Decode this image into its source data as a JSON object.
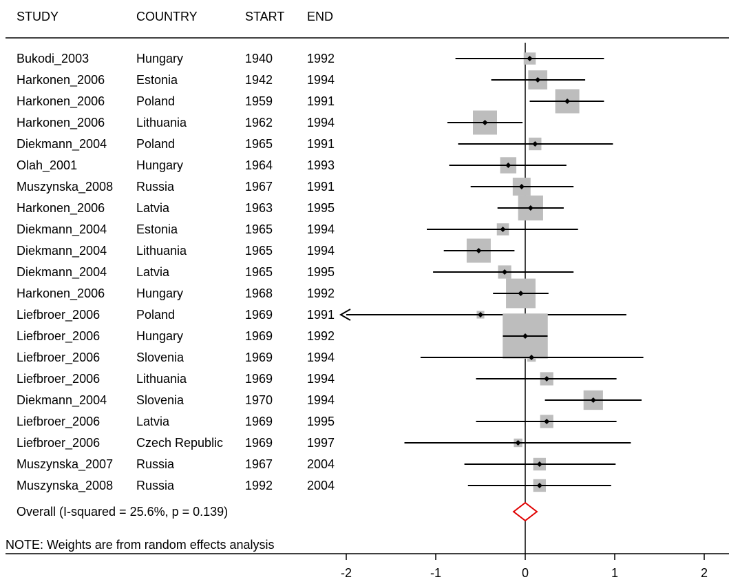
{
  "chart_data": {
    "type": "forest",
    "columns": [
      "STUDY",
      "COUNTRY",
      "START",
      "END"
    ],
    "x_ticks": [
      -2,
      -1,
      0,
      1,
      2
    ],
    "xlim": [
      -2.0,
      2.2
    ],
    "null_line": 0,
    "studies": [
      {
        "study": "Bukodi_2003",
        "country": "Hungary",
        "start": "1940",
        "end": "1992",
        "est": 0.05,
        "lo": -0.78,
        "hi": 0.88,
        "weight": 1.0
      },
      {
        "study": "Harkonen_2006",
        "country": "Estonia",
        "start": "1942",
        "end": "1994",
        "est": 0.14,
        "lo": -0.38,
        "hi": 0.67,
        "weight": 2.5
      },
      {
        "study": "Harkonen_2006",
        "country": "Poland",
        "start": "1959",
        "end": "1991",
        "est": 0.47,
        "lo": 0.05,
        "hi": 0.88,
        "weight": 4.0
      },
      {
        "study": "Harkonen_2006",
        "country": "Lithuania",
        "start": "1962",
        "end": "1994",
        "est": -0.45,
        "lo": -0.87,
        "hi": -0.03,
        "weight": 4.0
      },
      {
        "study": "Diekmann_2004",
        "country": "Poland",
        "start": "1965",
        "end": "1991",
        "est": 0.11,
        "lo": -0.75,
        "hi": 0.98,
        "weight": 1.1
      },
      {
        "study": "Olah_2001",
        "country": "Hungary",
        "start": "1964",
        "end": "1993",
        "est": -0.19,
        "lo": -0.85,
        "hi": 0.46,
        "weight": 1.8
      },
      {
        "study": "Muszynska_2008",
        "country": "Russia",
        "start": "1967",
        "end": "1991",
        "est": -0.04,
        "lo": -0.61,
        "hi": 0.54,
        "weight": 2.2
      },
      {
        "study": "Harkonen_2006",
        "country": "Latvia",
        "start": "1963",
        "end": "1995",
        "est": 0.06,
        "lo": -0.31,
        "hi": 0.43,
        "weight": 4.3
      },
      {
        "study": "Diekmann_2004",
        "country": "Estonia",
        "start": "1965",
        "end": "1994",
        "est": -0.25,
        "lo": -1.1,
        "hi": 0.59,
        "weight": 1.0
      },
      {
        "study": "Diekmann_2004",
        "country": "Lithuania",
        "start": "1965",
        "end": "1994",
        "est": -0.52,
        "lo": -0.91,
        "hi": -0.12,
        "weight": 4.0
      },
      {
        "study": "Diekmann_2004",
        "country": "Latvia",
        "start": "1965",
        "end": "1995",
        "est": -0.23,
        "lo": -1.03,
        "hi": 0.54,
        "weight": 1.2
      },
      {
        "study": "Harkonen_2006",
        "country": "Hungary",
        "start": "1968",
        "end": "1992",
        "est": -0.05,
        "lo": -0.36,
        "hi": 0.26,
        "weight": 6.0
      },
      {
        "study": "Liefbroer_2006",
        "country": "Poland",
        "start": "1969",
        "end": "1991",
        "est": -0.5,
        "lo": -2.0,
        "hi": 1.13,
        "weight": 0.4,
        "lo_truncated": true
      },
      {
        "study": "Liefbroer_2006",
        "country": "Hungary",
        "start": "1969",
        "end": "1992",
        "est": 0.0,
        "lo": -0.25,
        "hi": 0.25,
        "weight": 14.0
      },
      {
        "study": "Liefbroer_2006",
        "country": "Slovenia",
        "start": "1969",
        "end": "1994",
        "est": 0.07,
        "lo": -1.17,
        "hi": 1.32,
        "weight": 0.5
      },
      {
        "study": "Liefbroer_2006",
        "country": "Lithuania",
        "start": "1969",
        "end": "1994",
        "est": 0.24,
        "lo": -0.55,
        "hi": 1.02,
        "weight": 1.2
      },
      {
        "study": "Diekmann_2004",
        "country": "Slovenia",
        "start": "1970",
        "end": "1994",
        "est": 0.76,
        "lo": 0.22,
        "hi": 1.3,
        "weight": 2.6
      },
      {
        "study": "Liefbroer_2006",
        "country": "Latvia",
        "start": "1969",
        "end": "1995",
        "est": 0.24,
        "lo": -0.55,
        "hi": 1.02,
        "weight": 1.2
      },
      {
        "study": "Liefbroer_2006",
        "country": "Czech Republic",
        "start": "1969",
        "end": "1997",
        "est": -0.08,
        "lo": -1.35,
        "hi": 1.18,
        "weight": 0.5
      },
      {
        "study": "Muszynska_2007",
        "country": "Russia",
        "start": "1967",
        "end": "2004",
        "est": 0.16,
        "lo": -0.68,
        "hi": 1.01,
        "weight": 1.1
      },
      {
        "study": "Muszynska_2008",
        "country": "Russia",
        "start": "1992",
        "end": "2004",
        "est": 0.16,
        "lo": -0.64,
        "hi": 0.96,
        "weight": 1.1
      }
    ],
    "overall": {
      "label": "Overall  (I-squared = 25.6%, p = 0.139)",
      "est": 0.0,
      "lo": -0.13,
      "hi": 0.13
    },
    "note": "NOTE: Weights are from random effects analysis",
    "colors": {
      "box": "#bdbdbd",
      "line": "#000000",
      "diamond": "#e00000"
    }
  }
}
